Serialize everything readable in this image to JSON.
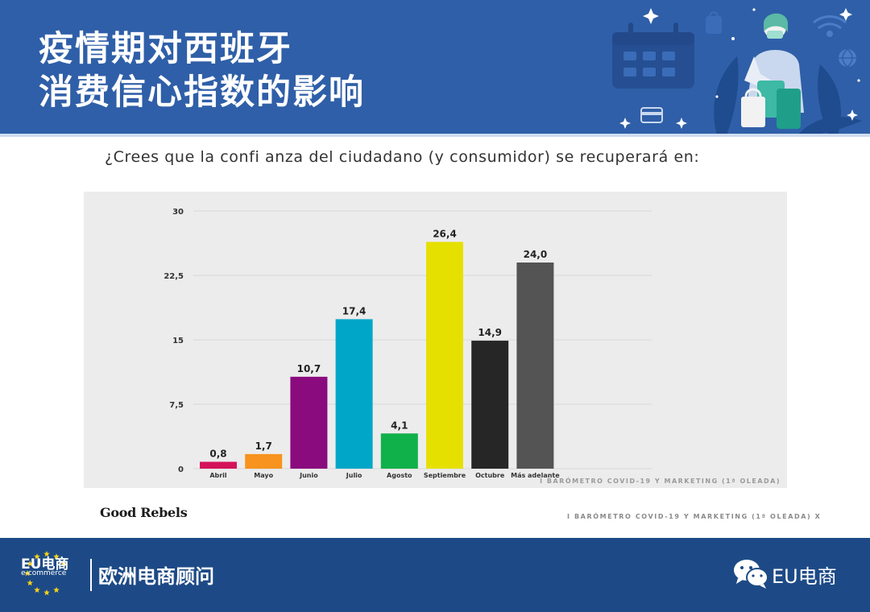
{
  "header": {
    "title_line1": "疫情期对西班牙",
    "title_line2": "消费信心指数的影响"
  },
  "question": "¿Crees que la confi anza del ciudadano (y consumidor) se recuperará en:",
  "chart_data": {
    "type": "bar",
    "categories": [
      "Abril",
      "Mayo",
      "Junio",
      "Julio",
      "Agosto",
      "Septiembre",
      "Octubre",
      "Más adelante"
    ],
    "values": [
      0.8,
      1.7,
      10.7,
      17.4,
      4.1,
      26.4,
      14.9,
      24.0
    ],
    "value_labels": [
      "0,8",
      "1,7",
      "10,7",
      "17,4",
      "4,1",
      "26,4",
      "14,9",
      "24,0"
    ],
    "colors": [
      "#d4145a",
      "#f7931e",
      "#8a0b7e",
      "#00a6c8",
      "#10b14b",
      "#e6e000",
      "#262626",
      "#545454"
    ],
    "yticks": [
      0,
      7.5,
      15,
      22.5,
      30
    ],
    "ytick_labels": [
      "0",
      "7,5",
      "15",
      "22,5",
      "30"
    ],
    "ylim": [
      0,
      30
    ],
    "grid": true,
    "legend": "none",
    "source_note": "I BARÓMETRO COVID-19 Y MARKETING (1ª OLEADA)"
  },
  "brand": "Good Rebels",
  "page_source": "I BARÓMETRO COVID-19 Y MARKETING (1ª OLEADA)  X",
  "footer": {
    "logo_main": "EU电商",
    "logo_sub": "e-commerce",
    "name": "欧洲电商顾问",
    "wechat_name": "EU电商"
  }
}
